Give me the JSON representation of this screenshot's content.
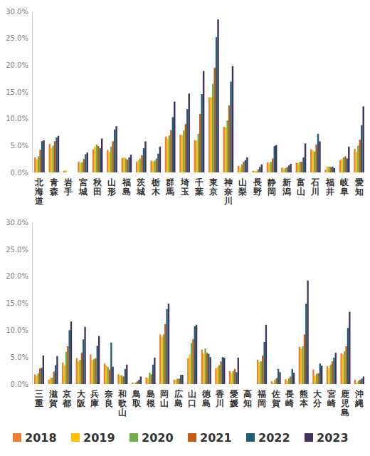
{
  "chart_data": [
    {
      "type": "bar",
      "categories": [
        "北海道",
        "青森",
        "岩手",
        "宮城",
        "秋田",
        "山形",
        "福島",
        "茨城",
        "栃木",
        "群馬",
        "埼玉",
        "千葉",
        "東京",
        "神奈川",
        "山梨",
        "長野",
        "静岡",
        "新潟",
        "富山",
        "石川",
        "福井",
        "岐阜",
        "愛知"
      ],
      "series": [
        {
          "color": "#ed7d31",
          "values": [
            2.8,
            5.3,
            0.3,
            2.0,
            4.3,
            4.2,
            2.7,
            2.0,
            2.2,
            6.7,
            7.0,
            6.0,
            14.0,
            8.5,
            1.2,
            0.3,
            1.9,
            0.9,
            1.8,
            4.3,
            0.5,
            2.3,
            4.4
          ]
        },
        {
          "color": "#ffc000",
          "values": [
            2.5,
            4.5,
            0.4,
            1.8,
            4.8,
            3.8,
            2.8,
            2.3,
            2.0,
            6.3,
            7.0,
            6.0,
            14.0,
            8.4,
            1.0,
            0.3,
            1.7,
            0.6,
            1.7,
            4.1,
            1.1,
            2.5,
            3.9
          ]
        },
        {
          "color": "#70ad47",
          "values": [
            3.0,
            5.0,
            null,
            1.9,
            5.2,
            4.8,
            2.6,
            2.6,
            2.2,
            6.9,
            7.8,
            7.2,
            16.5,
            9.7,
            1.5,
            0.2,
            2.0,
            0.8,
            2.0,
            3.9,
            1.1,
            2.8,
            5.0
          ]
        },
        {
          "color": "#c55a11",
          "values": [
            4.2,
            5.8,
            null,
            2.5,
            4.9,
            5.8,
            2.4,
            3.2,
            2.6,
            7.9,
            9.0,
            10.9,
            19.5,
            12.5,
            2.0,
            0.6,
            2.6,
            1.0,
            2.0,
            5.2,
            1.0,
            3.0,
            6.1
          ]
        },
        {
          "color": "#1f5f73",
          "values": [
            5.8,
            6.5,
            null,
            3.4,
            4.5,
            8.0,
            2.8,
            4.5,
            3.5,
            10.3,
            11.8,
            14.6,
            25.2,
            16.9,
            2.3,
            1.0,
            4.9,
            1.3,
            2.8,
            7.2,
            1.1,
            2.6,
            8.8
          ]
        },
        {
          "color": "#44325e",
          "values": [
            6.0,
            6.8,
            null,
            3.7,
            6.3,
            8.6,
            3.3,
            5.8,
            4.8,
            13.2,
            14.7,
            18.9,
            28.5,
            19.8,
            2.8,
            1.5,
            5.1,
            1.6,
            5.4,
            5.8,
            0.8,
            4.8,
            12.3
          ]
        }
      ],
      "ylim": [
        0,
        30
      ],
      "yticks": [
        {
          "value": 0,
          "label": "0.0%"
        },
        {
          "value": 5,
          "label": "5.0%"
        },
        {
          "value": 10,
          "label": "10.0%"
        },
        {
          "value": 15,
          "label": "15.0%"
        },
        {
          "value": 20,
          "label": "20.0%"
        },
        {
          "value": 25,
          "label": "25.0%"
        },
        {
          "value": 30,
          "label": "30.0%"
        }
      ],
      "grid": false
    },
    {
      "type": "bar",
      "categories": [
        "三重",
        "滋賀",
        "京都",
        "大阪",
        "兵庫",
        "奈良",
        "和歌山",
        "鳥取",
        "島根",
        "岡山",
        "広島",
        "山口",
        "徳島",
        "香川",
        "愛媛",
        "高知",
        "福岡",
        "佐賀",
        "長崎",
        "熊本",
        "大分",
        "宮崎",
        "鹿児島",
        "沖縄"
      ],
      "series": [
        {
          "name": "2018",
          "color": "#ed7d31",
          "values": [
            1.8,
            0.8,
            4.0,
            4.8,
            5.5,
            3.8,
            1.8,
            0.3,
            1.2,
            9.2,
            0.8,
            4.8,
            6.4,
            2.9,
            2.4,
            null,
            4.5,
            0.5,
            0.9,
            6.9,
            2.7,
            3.3,
            5.7,
            0.8
          ]
        },
        {
          "name": "2019",
          "color": "#ffc000",
          "values": [
            1.6,
            1.2,
            3.5,
            4.2,
            4.4,
            3.5,
            1.6,
            0.2,
            1.1,
            8.8,
            0.8,
            5.5,
            5.6,
            3.2,
            2.0,
            null,
            4.1,
            0.3,
            0.6,
            6.6,
            1.6,
            3.0,
            5.5,
            0.3
          ]
        },
        {
          "name": "2020",
          "color": "#70ad47",
          "values": [
            2.0,
            1.2,
            6.0,
            4.5,
            4.6,
            3.2,
            1.6,
            0.3,
            2.1,
            9.2,
            1.0,
            7.6,
            6.6,
            3.5,
            2.4,
            null,
            4.2,
            0.8,
            1.1,
            7.0,
            1.9,
            3.6,
            6.1,
            0.6
          ]
        },
        {
          "name": "2021",
          "color": "#c55a11",
          "values": [
            2.9,
            2.3,
            7.0,
            5.8,
            4.8,
            2.7,
            1.4,
            0.5,
            1.8,
            11.1,
            1.0,
            8.3,
            5.8,
            4.2,
            2.8,
            null,
            5.3,
            1.1,
            1.4,
            9.2,
            2.0,
            4.2,
            7.0,
            0.8
          ]
        },
        {
          "name": "2022",
          "color": "#1f5f73",
          "values": [
            3.0,
            3.5,
            10.0,
            8.3,
            7.1,
            7.7,
            2.8,
            0.8,
            3.6,
            13.9,
            1.7,
            10.7,
            5.6,
            5.0,
            2.2,
            null,
            7.8,
            2.8,
            2.8,
            14.9,
            3.8,
            4.9,
            10.4,
            1.0
          ]
        },
        {
          "name": "2023",
          "color": "#44325e",
          "values": [
            5.3,
            5.2,
            11.6,
            10.6,
            8.9,
            3.2,
            3.6,
            1.4,
            4.9,
            14.9,
            1.7,
            11.0,
            5.0,
            4.9,
            4.9,
            null,
            11.0,
            2.2,
            2.1,
            19.2,
            3.4,
            5.8,
            13.4,
            1.4
          ]
        }
      ],
      "ylim": [
        0,
        30
      ],
      "yticks": [
        {
          "value": 0,
          "label": "0.0%"
        },
        {
          "value": 5,
          "label": "5.0%"
        },
        {
          "value": 10,
          "label": "10.0%"
        },
        {
          "value": 15,
          "label": "15.0%"
        },
        {
          "value": 20,
          "label": "20.0%"
        },
        {
          "value": 25,
          "label": "25.0%"
        },
        {
          "value": 30,
          "label": "30.0%"
        }
      ],
      "grid": false,
      "legend": "bottom"
    }
  ]
}
